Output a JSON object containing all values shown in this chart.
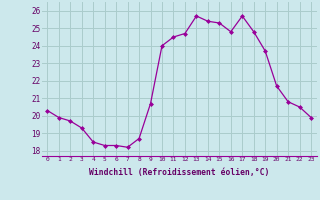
{
  "x": [
    0,
    1,
    2,
    3,
    4,
    5,
    6,
    7,
    8,
    9,
    10,
    11,
    12,
    13,
    14,
    15,
    16,
    17,
    18,
    19,
    20,
    21,
    22,
    23
  ],
  "y": [
    20.3,
    19.9,
    19.7,
    19.3,
    18.5,
    18.3,
    18.3,
    18.2,
    18.7,
    20.7,
    24.0,
    24.5,
    24.7,
    25.7,
    25.4,
    25.3,
    24.8,
    25.7,
    24.8,
    23.7,
    21.7,
    20.8,
    20.5,
    19.9
  ],
  "line_color": "#990099",
  "marker": "D",
  "marker_size": 2,
  "bg_color": "#cce8ec",
  "grid_color": "#aacccc",
  "xlabel": "Windchill (Refroidissement éolien,°C)",
  "xlabel_color": "#660066",
  "tick_color": "#660066",
  "ylabel_ticks": [
    18,
    19,
    20,
    21,
    22,
    23,
    24,
    25,
    26
  ],
  "xlim": [
    -0.5,
    23.5
  ],
  "ylim": [
    17.7,
    26.5
  ],
  "xtick_labels": [
    "0",
    "1",
    "2",
    "3",
    "4",
    "5",
    "6",
    "7",
    "8",
    "9",
    "10",
    "11",
    "12",
    "13",
    "14",
    "15",
    "16",
    "17",
    "18",
    "19",
    "20",
    "21",
    "22",
    "23"
  ]
}
